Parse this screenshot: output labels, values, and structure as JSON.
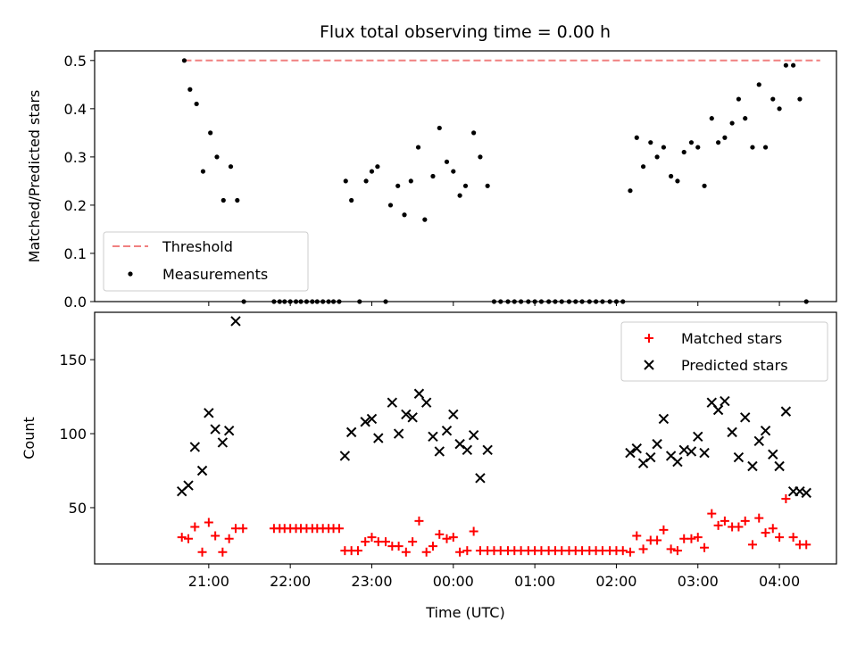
{
  "title": "Flux total observing time = 0.00 h",
  "colors": {
    "threshold": "#f08080",
    "measurement": "#000000",
    "matched": "#ff0000",
    "predicted": "#000000"
  },
  "chart_data": [
    {
      "type": "scatter",
      "panel": "top",
      "ylabel": "Matched/Predicted stars",
      "ylim": [
        0,
        0.52
      ],
      "yticks": [
        "0.0",
        "0.1",
        "0.2",
        "0.3",
        "0.4",
        "0.5"
      ],
      "legend_position": "lower-left",
      "threshold": {
        "name": "Threshold",
        "value": 0.5,
        "x_range": [
          -3.3,
          4.5
        ]
      },
      "series": [
        {
          "name": "Measurements",
          "points": [
            [
              -3.3,
              0.5
            ],
            [
              -3.23,
              0.44
            ],
            [
              -3.15,
              0.41
            ],
            [
              -3.07,
              0.27
            ],
            [
              -2.98,
              0.35
            ],
            [
              -2.9,
              0.3
            ],
            [
              -2.82,
              0.21
            ],
            [
              -2.73,
              0.28
            ],
            [
              -2.65,
              0.21
            ],
            [
              -2.57,
              0.0
            ],
            [
              -2.2,
              0.0
            ],
            [
              -2.13,
              0.0
            ],
            [
              -2.07,
              0.0
            ],
            [
              -2.0,
              0.0
            ],
            [
              -1.93,
              0.0
            ],
            [
              -1.87,
              0.0
            ],
            [
              -1.8,
              0.0
            ],
            [
              -1.73,
              0.0
            ],
            [
              -1.67,
              0.0
            ],
            [
              -1.6,
              0.0
            ],
            [
              -1.53,
              0.0
            ],
            [
              -1.47,
              0.0
            ],
            [
              -1.4,
              0.0
            ],
            [
              -1.32,
              0.25
            ],
            [
              -1.25,
              0.21
            ],
            [
              -1.15,
              0.0
            ],
            [
              -1.07,
              0.25
            ],
            [
              -1.0,
              0.27
            ],
            [
              -0.93,
              0.28
            ],
            [
              -0.83,
              0.0
            ],
            [
              -0.77,
              0.2
            ],
            [
              -0.68,
              0.24
            ],
            [
              -0.6,
              0.18
            ],
            [
              -0.52,
              0.25
            ],
            [
              -0.43,
              0.32
            ],
            [
              -0.35,
              0.17
            ],
            [
              -0.25,
              0.26
            ],
            [
              -0.17,
              0.36
            ],
            [
              -0.08,
              0.29
            ],
            [
              0.0,
              0.27
            ],
            [
              0.08,
              0.22
            ],
            [
              0.15,
              0.24
            ],
            [
              0.25,
              0.35
            ],
            [
              0.33,
              0.3
            ],
            [
              0.42,
              0.24
            ],
            [
              0.5,
              0.0
            ],
            [
              0.58,
              0.0
            ],
            [
              0.67,
              0.0
            ],
            [
              0.75,
              0.0
            ],
            [
              0.83,
              0.0
            ],
            [
              0.92,
              0.0
            ],
            [
              1.0,
              0.0
            ],
            [
              1.08,
              0.0
            ],
            [
              1.17,
              0.0
            ],
            [
              1.25,
              0.0
            ],
            [
              1.33,
              0.0
            ],
            [
              1.42,
              0.0
            ],
            [
              1.5,
              0.0
            ],
            [
              1.58,
              0.0
            ],
            [
              1.67,
              0.0
            ],
            [
              1.75,
              0.0
            ],
            [
              1.83,
              0.0
            ],
            [
              1.92,
              0.0
            ],
            [
              2.0,
              0.0
            ],
            [
              2.08,
              0.0
            ],
            [
              2.17,
              0.23
            ],
            [
              2.25,
              0.34
            ],
            [
              2.33,
              0.28
            ],
            [
              2.42,
              0.33
            ],
            [
              2.5,
              0.3
            ],
            [
              2.58,
              0.32
            ],
            [
              2.67,
              0.26
            ],
            [
              2.75,
              0.25
            ],
            [
              2.83,
              0.31
            ],
            [
              2.92,
              0.33
            ],
            [
              3.0,
              0.32
            ],
            [
              3.08,
              0.24
            ],
            [
              3.17,
              0.38
            ],
            [
              3.25,
              0.33
            ],
            [
              3.33,
              0.34
            ],
            [
              3.42,
              0.37
            ],
            [
              3.5,
              0.42
            ],
            [
              3.58,
              0.38
            ],
            [
              3.67,
              0.32
            ],
            [
              3.75,
              0.45
            ],
            [
              3.83,
              0.32
            ],
            [
              3.92,
              0.42
            ],
            [
              4.0,
              0.4
            ],
            [
              4.08,
              0.49
            ],
            [
              4.17,
              0.49
            ],
            [
              4.25,
              0.42
            ],
            [
              4.33,
              0.0
            ]
          ]
        }
      ]
    },
    {
      "type": "scatter",
      "panel": "bottom",
      "ylabel": "Count",
      "xlabel": "Time (UTC)",
      "ylim": [
        12,
        182
      ],
      "yticks": [
        50,
        100,
        150
      ],
      "xlim": [
        -4.4,
        4.7
      ],
      "xtick_values": [
        -3,
        -2,
        -1,
        0,
        1,
        2,
        3,
        4
      ],
      "xtick_labels": [
        "21:00",
        "22:00",
        "23:00",
        "00:00",
        "01:00",
        "02:00",
        "03:00",
        "04:00"
      ],
      "legend_position": "upper-right",
      "series": [
        {
          "name": "Matched stars",
          "marker": "plus",
          "points": [
            [
              -3.33,
              30
            ],
            [
              -3.25,
              29
            ],
            [
              -3.17,
              37
            ],
            [
              -3.08,
              20
            ],
            [
              -3.0,
              40
            ],
            [
              -2.92,
              31
            ],
            [
              -2.83,
              20
            ],
            [
              -2.75,
              29
            ],
            [
              -2.67,
              36
            ],
            [
              -2.58,
              36
            ],
            [
              -2.2,
              36
            ],
            [
              -2.13,
              36
            ],
            [
              -2.07,
              36
            ],
            [
              -2.0,
              36
            ],
            [
              -1.93,
              36
            ],
            [
              -1.87,
              36
            ],
            [
              -1.8,
              36
            ],
            [
              -1.73,
              36
            ],
            [
              -1.67,
              36
            ],
            [
              -1.6,
              36
            ],
            [
              -1.53,
              36
            ],
            [
              -1.47,
              36
            ],
            [
              -1.4,
              36
            ],
            [
              -1.33,
              21
            ],
            [
              -1.25,
              21
            ],
            [
              -1.17,
              21
            ],
            [
              -1.08,
              27
            ],
            [
              -1.0,
              30
            ],
            [
              -0.92,
              27
            ],
            [
              -0.83,
              27
            ],
            [
              -0.75,
              24
            ],
            [
              -0.67,
              24
            ],
            [
              -0.58,
              20
            ],
            [
              -0.5,
              27
            ],
            [
              -0.42,
              41
            ],
            [
              -0.33,
              20
            ],
            [
              -0.25,
              24
            ],
            [
              -0.17,
              32
            ],
            [
              -0.08,
              29
            ],
            [
              0.0,
              30
            ],
            [
              0.08,
              20
            ],
            [
              0.17,
              21
            ],
            [
              0.25,
              34
            ],
            [
              0.33,
              21
            ],
            [
              0.42,
              21
            ],
            [
              0.5,
              21
            ],
            [
              0.58,
              21
            ],
            [
              0.67,
              21
            ],
            [
              0.75,
              21
            ],
            [
              0.83,
              21
            ],
            [
              0.92,
              21
            ],
            [
              1.0,
              21
            ],
            [
              1.08,
              21
            ],
            [
              1.17,
              21
            ],
            [
              1.25,
              21
            ],
            [
              1.33,
              21
            ],
            [
              1.42,
              21
            ],
            [
              1.5,
              21
            ],
            [
              1.58,
              21
            ],
            [
              1.67,
              21
            ],
            [
              1.75,
              21
            ],
            [
              1.83,
              21
            ],
            [
              1.92,
              21
            ],
            [
              2.0,
              21
            ],
            [
              2.08,
              21
            ],
            [
              2.17,
              20
            ],
            [
              2.25,
              31
            ],
            [
              2.33,
              22
            ],
            [
              2.42,
              28
            ],
            [
              2.5,
              28
            ],
            [
              2.58,
              35
            ],
            [
              2.67,
              22
            ],
            [
              2.75,
              21
            ],
            [
              2.83,
              29
            ],
            [
              2.92,
              29
            ],
            [
              3.0,
              30
            ],
            [
              3.08,
              23
            ],
            [
              3.17,
              46
            ],
            [
              3.25,
              38
            ],
            [
              3.33,
              41
            ],
            [
              3.42,
              37
            ],
            [
              3.5,
              37
            ],
            [
              3.58,
              41
            ],
            [
              3.67,
              25
            ],
            [
              3.75,
              43
            ],
            [
              3.83,
              33
            ],
            [
              3.92,
              36
            ],
            [
              4.0,
              30
            ],
            [
              4.08,
              56
            ],
            [
              4.17,
              30
            ],
            [
              4.25,
              25
            ],
            [
              4.33,
              25
            ]
          ]
        },
        {
          "name": "Predicted stars",
          "marker": "x",
          "points": [
            [
              -3.33,
              61
            ],
            [
              -3.25,
              65
            ],
            [
              -3.17,
              91
            ],
            [
              -3.08,
              75
            ],
            [
              -3.0,
              114
            ],
            [
              -2.92,
              103
            ],
            [
              -2.83,
              94
            ],
            [
              -2.75,
              102
            ],
            [
              -2.67,
              176
            ],
            [
              -1.33,
              85
            ],
            [
              -1.25,
              101
            ],
            [
              -1.08,
              108
            ],
            [
              -1.0,
              110
            ],
            [
              -0.92,
              97
            ],
            [
              -0.75,
              121
            ],
            [
              -0.67,
              100
            ],
            [
              -0.58,
              113
            ],
            [
              -0.5,
              111
            ],
            [
              -0.42,
              127
            ],
            [
              -0.33,
              121
            ],
            [
              -0.25,
              98
            ],
            [
              -0.17,
              88
            ],
            [
              -0.08,
              102
            ],
            [
              0.0,
              113
            ],
            [
              0.08,
              93
            ],
            [
              0.17,
              89
            ],
            [
              0.25,
              99
            ],
            [
              0.33,
              70
            ],
            [
              0.42,
              89
            ],
            [
              2.17,
              87
            ],
            [
              2.25,
              90
            ],
            [
              2.33,
              80
            ],
            [
              2.42,
              84
            ],
            [
              2.5,
              93
            ],
            [
              2.58,
              110
            ],
            [
              2.67,
              85
            ],
            [
              2.75,
              81
            ],
            [
              2.83,
              89
            ],
            [
              2.92,
              88
            ],
            [
              3.0,
              98
            ],
            [
              3.08,
              87
            ],
            [
              3.17,
              121
            ],
            [
              3.25,
              116
            ],
            [
              3.33,
              122
            ],
            [
              3.42,
              101
            ],
            [
              3.5,
              84
            ],
            [
              3.58,
              111
            ],
            [
              3.67,
              78
            ],
            [
              3.75,
              95
            ],
            [
              3.83,
              102
            ],
            [
              3.92,
              86
            ],
            [
              4.0,
              78
            ],
            [
              4.08,
              115
            ],
            [
              4.17,
              61
            ],
            [
              4.25,
              61
            ],
            [
              4.33,
              60
            ]
          ]
        }
      ]
    }
  ]
}
